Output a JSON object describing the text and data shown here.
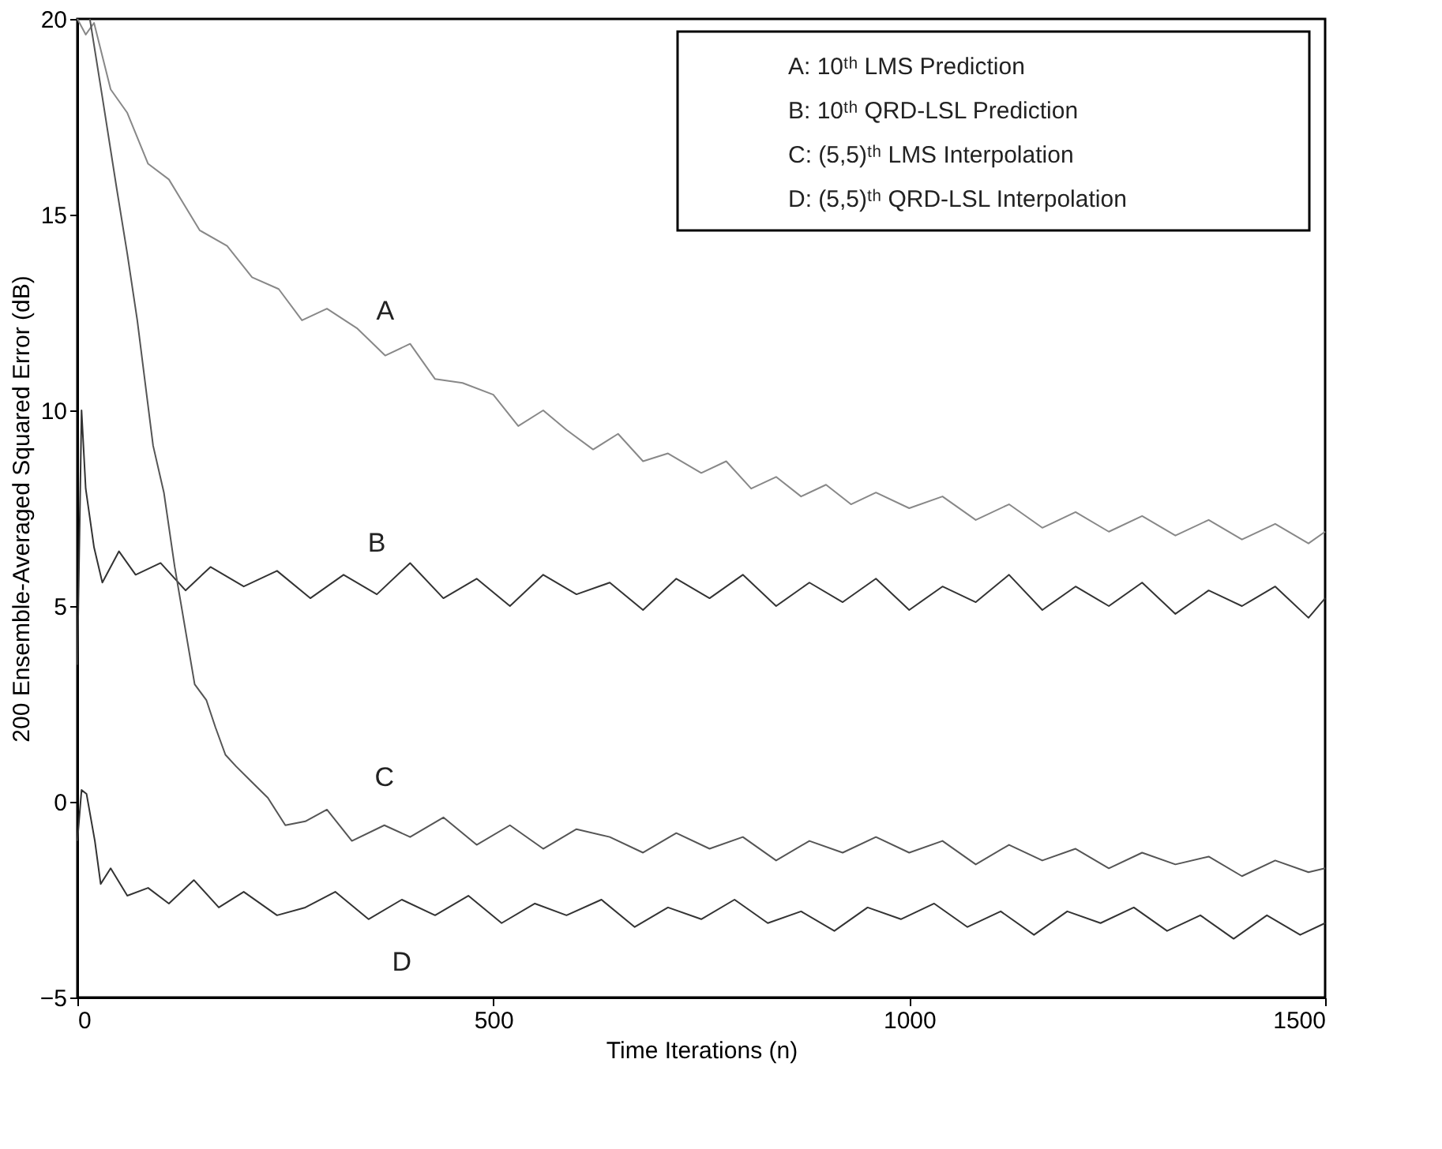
{
  "chart_data": {
    "type": "line",
    "xlabel": "Time Iterations (n)",
    "ylabel": "200 Ensemble-Averaged Squared Error (dB)",
    "xlim": [
      0,
      1500
    ],
    "xticks": [
      0,
      500,
      1000,
      1500
    ],
    "ylim": [
      -5,
      20
    ],
    "yticks": [
      -5,
      0,
      5,
      10,
      15,
      20
    ],
    "grid": false,
    "marker": "none",
    "line_style": "solid",
    "series": [
      {
        "name": "A",
        "color": "#888888",
        "x": [
          0,
          10,
          20,
          40,
          60,
          85,
          110,
          147,
          180,
          210,
          242,
          270,
          300,
          336,
          370,
          400,
          430,
          463,
          500,
          530,
          560,
          588,
          620,
          650,
          680,
          710,
          750,
          780,
          810,
          840,
          870,
          900,
          930,
          960,
          1000,
          1040,
          1080,
          1120,
          1160,
          1200,
          1240,
          1280,
          1320,
          1360,
          1400,
          1440,
          1480,
          1500
        ],
        "values": [
          20.0,
          19.6,
          19.9,
          18.2,
          17.6,
          16.3,
          15.9,
          14.6,
          14.2,
          13.4,
          13.1,
          12.3,
          12.6,
          12.1,
          11.4,
          11.7,
          10.8,
          10.7,
          10.4,
          9.6,
          10.0,
          9.5,
          9.0,
          9.4,
          8.7,
          8.9,
          8.4,
          8.7,
          8.0,
          8.3,
          7.8,
          8.1,
          7.6,
          7.9,
          7.5,
          7.8,
          7.2,
          7.6,
          7.0,
          7.4,
          6.9,
          7.3,
          6.8,
          7.2,
          6.7,
          7.1,
          6.6,
          6.9
        ]
      },
      {
        "name": "B",
        "color": "#333333",
        "x": [
          0,
          5,
          10,
          20,
          30,
          50,
          70,
          100,
          130,
          160,
          200,
          240,
          280,
          320,
          360,
          400,
          440,
          480,
          520,
          560,
          600,
          640,
          680,
          720,
          760,
          800,
          840,
          880,
          920,
          960,
          1000,
          1040,
          1080,
          1120,
          1160,
          1200,
          1240,
          1280,
          1320,
          1360,
          1400,
          1440,
          1480,
          1500
        ],
        "values": [
          3.5,
          10.0,
          8.0,
          6.5,
          5.6,
          6.4,
          5.8,
          6.1,
          5.4,
          6.0,
          5.5,
          5.9,
          5.2,
          5.8,
          5.3,
          6.1,
          5.2,
          5.7,
          5.0,
          5.8,
          5.3,
          5.6,
          4.9,
          5.7,
          5.2,
          5.8,
          5.0,
          5.6,
          5.1,
          5.7,
          4.9,
          5.5,
          5.1,
          5.8,
          4.9,
          5.5,
          5.0,
          5.6,
          4.8,
          5.4,
          5.0,
          5.5,
          4.7,
          5.2
        ]
      },
      {
        "name": "C",
        "color": "#555555",
        "x": [
          15,
          30,
          47,
          60,
          72,
          91,
          104,
          117,
          129,
          141,
          155,
          166,
          178,
          191,
          210,
          229,
          250,
          274,
          300,
          330,
          369,
          400,
          440,
          480,
          520,
          560,
          600,
          640,
          680,
          720,
          760,
          800,
          840,
          880,
          920,
          960,
          1000,
          1040,
          1080,
          1120,
          1160,
          1200,
          1240,
          1280,
          1320,
          1360,
          1400,
          1440,
          1480,
          1500
        ],
        "values": [
          20.0,
          18.0,
          15.7,
          14.0,
          12.3,
          9.1,
          7.9,
          6.0,
          4.5,
          3.0,
          2.6,
          1.9,
          1.2,
          0.9,
          0.5,
          0.1,
          -0.6,
          -0.5,
          -0.2,
          -1.0,
          -0.6,
          -0.9,
          -0.4,
          -1.1,
          -0.6,
          -1.2,
          -0.7,
          -0.9,
          -1.3,
          -0.8,
          -1.2,
          -0.9,
          -1.5,
          -1.0,
          -1.3,
          -0.9,
          -1.3,
          -1.0,
          -1.6,
          -1.1,
          -1.5,
          -1.2,
          -1.7,
          -1.3,
          -1.6,
          -1.4,
          -1.9,
          -1.5,
          -1.8,
          -1.7
        ]
      },
      {
        "name": "D",
        "color": "#333333",
        "x": [
          0,
          5,
          11,
          21,
          28,
          40,
          60,
          85,
          110,
          140,
          170,
          200,
          240,
          274,
          310,
          350,
          390,
          430,
          470,
          510,
          550,
          588,
          630,
          670,
          710,
          750,
          790,
          830,
          870,
          910,
          950,
          990,
          1030,
          1070,
          1110,
          1150,
          1190,
          1230,
          1270,
          1310,
          1350,
          1390,
          1430,
          1470,
          1500
        ],
        "values": [
          -1.0,
          0.3,
          0.2,
          -1.0,
          -2.1,
          -1.7,
          -2.4,
          -2.2,
          -2.6,
          -2.0,
          -2.7,
          -2.3,
          -2.9,
          -2.7,
          -2.3,
          -3.0,
          -2.5,
          -2.9,
          -2.4,
          -3.1,
          -2.6,
          -2.9,
          -2.5,
          -3.2,
          -2.7,
          -3.0,
          -2.5,
          -3.1,
          -2.8,
          -3.3,
          -2.7,
          -3.0,
          -2.6,
          -3.2,
          -2.8,
          -3.4,
          -2.8,
          -3.1,
          -2.7,
          -3.3,
          -2.9,
          -3.5,
          -2.9,
          -3.4,
          -3.1
        ]
      }
    ],
    "annotations": [
      "A: 10ᵗʰ LMS Prediction",
      "B: 10ᵗʰ QRD-LSL Prediction",
      "C: (5,5)ᵗʰ LMS Interpolation",
      "D: (5,5)ᵗʰ QRD-LSL Interpolation"
    ]
  }
}
